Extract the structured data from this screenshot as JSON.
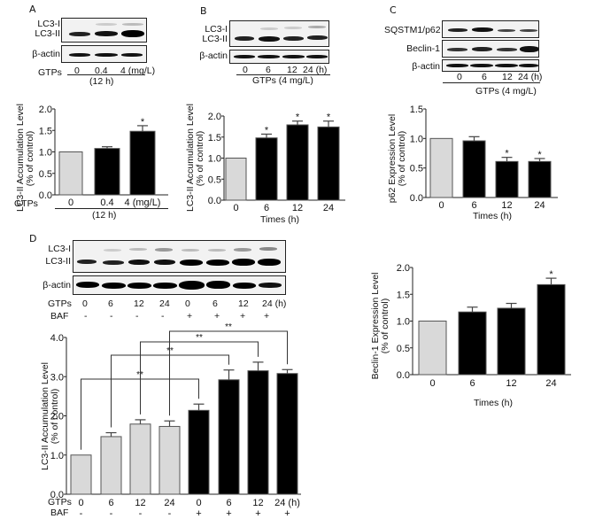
{
  "panels": {
    "A": {
      "letter": "A",
      "blot": {
        "rows": [
          "LC3-I",
          "LC3-II",
          "β-actin"
        ],
        "lanes": [
          "0",
          "0.4",
          "4 (mg/L)"
        ],
        "treatment_label": "GTPs",
        "condition": "(12 h)"
      }
    },
    "B": {
      "letter": "B",
      "blot": {
        "rows": [
          "LC3-I",
          "LC3-II",
          "β-actin"
        ],
        "lanes": [
          "0",
          "6",
          "12",
          "24 (h)"
        ],
        "treatment_label": "GTPs (4 mg/L)"
      }
    },
    "C": {
      "letter": "C",
      "blot": {
        "rows": [
          "SQSTM1/p62",
          "Beclin-1",
          "β-actin"
        ],
        "lanes": [
          "0",
          "6",
          "12",
          "24 (h)"
        ],
        "treatment_label": "GTPs (4 mg/L)"
      }
    },
    "D": {
      "letter": "D",
      "blot": {
        "rows": [
          "LC3-I",
          "LC3-II",
          "β-actin"
        ],
        "gtps_label": "GTPs",
        "baf_label": "BAF",
        "lanes": [
          "0",
          "6",
          "12",
          "24",
          "0",
          "6",
          "12",
          "24 (h)"
        ],
        "baf": [
          "-",
          "-",
          "-",
          "-",
          "+",
          "+",
          "+",
          "+"
        ]
      }
    }
  },
  "chart_data": [
    {
      "id": "A",
      "type": "bar",
      "title": "",
      "xlabel": "GTPs (12 h)",
      "ylabel": "LC3-II Accumulation Level (% of control)",
      "ylabel_line1": "LC3-II Accumulation Level",
      "ylabel_line2": "(% of control)",
      "categories": [
        "0",
        "0.4",
        "4 (mg/L)"
      ],
      "x_prefix": "GTPs",
      "x_sublabel": "(12 h)",
      "values": [
        1.0,
        1.08,
        1.48
      ],
      "errors": [
        0,
        0.04,
        0.13
      ],
      "significance": [
        "",
        "",
        "*"
      ],
      "colors": [
        "#d9d9d9",
        "#000000",
        "#000000"
      ],
      "ylim": [
        0,
        2.0
      ],
      "yticks": [
        "0.0",
        "0.5",
        "1.0",
        "1.5",
        "2.0"
      ],
      "grid": false
    },
    {
      "id": "B",
      "type": "bar",
      "title": "",
      "xlabel": "Times (h)",
      "ylabel": "LC3-II Accumulation Level (% of control)",
      "ylabel_line1": "LC3-II Accumulation Level",
      "ylabel_line2": "(% of control)",
      "categories": [
        "0",
        "6",
        "12",
        "24"
      ],
      "values": [
        1.0,
        1.48,
        1.79,
        1.74
      ],
      "errors": [
        0,
        0.09,
        0.09,
        0.14
      ],
      "significance": [
        "",
        "*",
        "*",
        "*"
      ],
      "colors": [
        "#d9d9d9",
        "#000000",
        "#000000",
        "#000000"
      ],
      "ylim": [
        0,
        2.0
      ],
      "yticks": [
        "0.0",
        "0.5",
        "1.0",
        "1.5",
        "2.0"
      ],
      "grid": false
    },
    {
      "id": "C",
      "type": "bar",
      "title": "",
      "xlabel": "Times (h)",
      "ylabel": "p62 Expression Level (% of control)",
      "ylabel_line1": "p62 Expression Level",
      "ylabel_line2": "(% of control)",
      "categories": [
        "0",
        "6",
        "12",
        "24"
      ],
      "values": [
        1.0,
        0.96,
        0.61,
        0.61
      ],
      "errors": [
        0,
        0.07,
        0.07,
        0.05
      ],
      "significance": [
        "",
        "",
        "*",
        "*"
      ],
      "colors": [
        "#d9d9d9",
        "#000000",
        "#000000",
        "#000000"
      ],
      "ylim": [
        0,
        1.5
      ],
      "yticks": [
        "0.0",
        "0.5",
        "1.0",
        "1.5"
      ],
      "grid": false
    },
    {
      "id": "Beclin",
      "type": "bar",
      "title": "",
      "xlabel": "Times (h)",
      "ylabel": "Beclin-1 Expression Level (% of control)",
      "ylabel_line1": "Beclin-1 Expression Level",
      "ylabel_line2": "(% of control)",
      "categories": [
        "0",
        "6",
        "12",
        "24"
      ],
      "values": [
        1.0,
        1.17,
        1.24,
        1.68
      ],
      "errors": [
        0,
        0.09,
        0.09,
        0.12
      ],
      "significance": [
        "",
        "",
        "",
        "*"
      ],
      "colors": [
        "#d9d9d9",
        "#000000",
        "#000000",
        "#000000"
      ],
      "ylim": [
        0,
        2.0
      ],
      "yticks": [
        "0.0",
        "0.5",
        "1.0",
        "1.5",
        "2.0"
      ],
      "grid": false
    },
    {
      "id": "D",
      "type": "bar",
      "title": "",
      "xlabel": "",
      "ylabel": "LC3-II Accumulation Level (% of control)",
      "ylabel_line1": "LC3-II Accumulation Level",
      "ylabel_line2": "(% of control)",
      "categories": [
        "0",
        "6",
        "12",
        "24",
        "0",
        "6",
        "12",
        "24 (h)"
      ],
      "x_prefix": "GTPs",
      "baf_prefix": "BAF",
      "baf": [
        "-",
        "-",
        "-",
        "-",
        "+",
        "+",
        "+",
        "+"
      ],
      "values": [
        1.0,
        1.47,
        1.79,
        1.73,
        2.14,
        2.92,
        3.15,
        3.08
      ],
      "errors": [
        0,
        0.1,
        0.11,
        0.14,
        0.16,
        0.25,
        0.22,
        0.1
      ],
      "colors": [
        "#d9d9d9",
        "#d9d9d9",
        "#d9d9d9",
        "#d9d9d9",
        "#000000",
        "#000000",
        "#000000",
        "#000000"
      ],
      "comparisons": [
        {
          "from": 0,
          "to": 4,
          "label": "**"
        },
        {
          "from": 1,
          "to": 5,
          "label": "**"
        },
        {
          "from": 2,
          "to": 6,
          "label": "**"
        },
        {
          "from": 3,
          "to": 7,
          "label": "**"
        }
      ],
      "ylim": [
        0,
        4.0
      ],
      "yticks": [
        "0.0",
        "1.0",
        "2.0",
        "3.0",
        "4.0"
      ],
      "grid": false
    }
  ]
}
